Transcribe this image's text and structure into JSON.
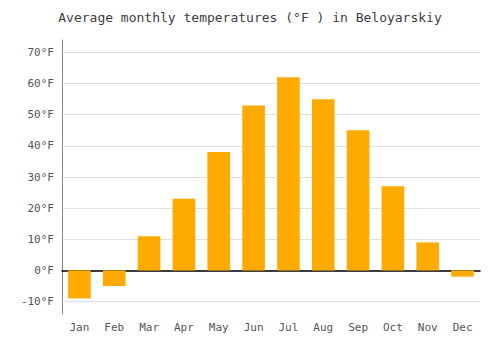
{
  "chart_data": {
    "type": "bar",
    "title": "Average monthly temperatures (°F ) in Beloyarskiy",
    "categories": [
      "Jan",
      "Feb",
      "Mar",
      "Apr",
      "May",
      "Jun",
      "Jul",
      "Aug",
      "Sep",
      "Oct",
      "Nov",
      "Dec"
    ],
    "values": [
      -9,
      -5,
      11,
      23,
      38,
      53,
      62,
      55,
      45,
      27,
      9,
      -2
    ],
    "color": "#FFAA00",
    "ylim": [
      -14,
      74
    ],
    "yticks": [
      {
        "value": -10,
        "label": "-10°F"
      },
      {
        "value": 0,
        "label": "0°F"
      },
      {
        "value": 10,
        "label": "10°F"
      },
      {
        "value": 20,
        "label": "20°F"
      },
      {
        "value": 30,
        "label": "30°F"
      },
      {
        "value": 40,
        "label": "40°F"
      },
      {
        "value": 50,
        "label": "50°F"
      },
      {
        "value": 60,
        "label": "60°F"
      },
      {
        "value": 70,
        "label": "70°F"
      }
    ],
    "grid": true
  }
}
